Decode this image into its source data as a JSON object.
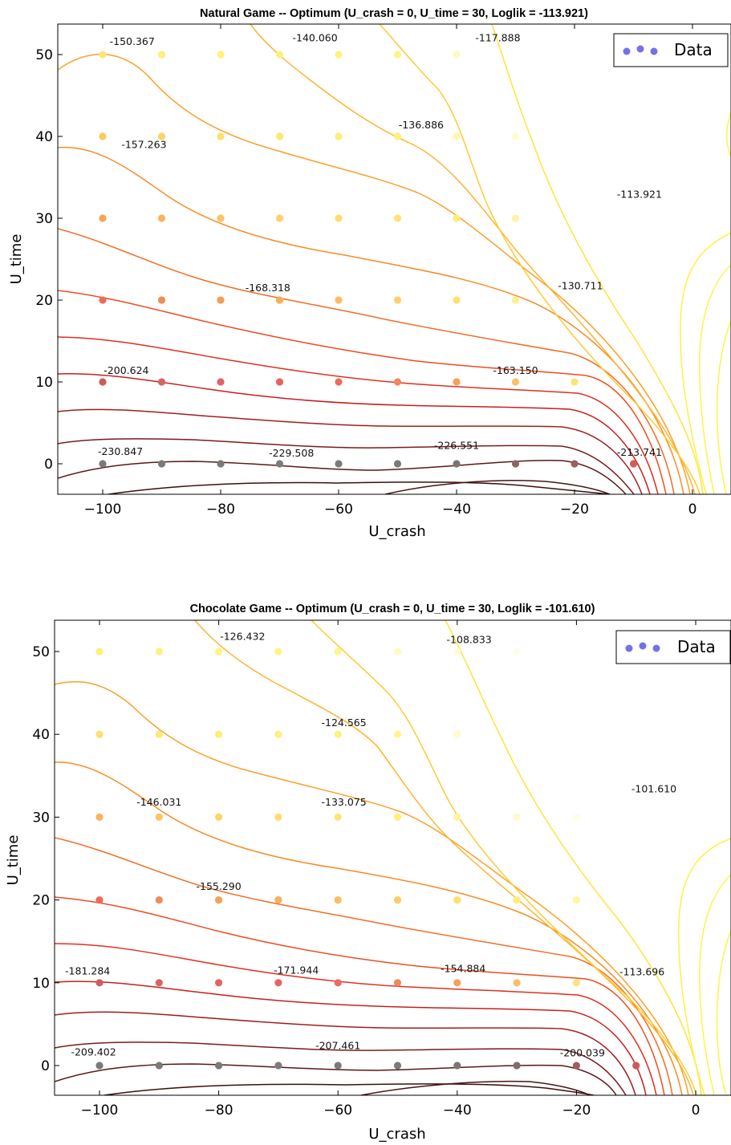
{
  "chart_data": [
    {
      "type": "contour",
      "title": "Natural Game -- Optimum (U_crash = 0, U_time = 30, Loglik = -113.921)",
      "xlabel": "U_crash",
      "ylabel": "U_time",
      "xlim": [
        -108,
        6
      ],
      "ylim": [
        -4,
        54
      ],
      "xticks": [
        "−100",
        "−80",
        "−60",
        "−40",
        "−20",
        "0"
      ],
      "yticks": [
        "0",
        "10",
        "20",
        "30",
        "40",
        "50"
      ],
      "legend": {
        "label": "Data",
        "position": "top-right",
        "color": "#7272e8"
      },
      "contour_labels": [
        {
          "x": -95,
          "y": 51.2,
          "text": "-150.367"
        },
        {
          "x": -64,
          "y": 51.6,
          "text": "-140.060"
        },
        {
          "x": -33,
          "y": 51.6,
          "text": "-117.888"
        },
        {
          "x": -93,
          "y": 38.6,
          "text": "-157.263"
        },
        {
          "x": -46,
          "y": 41.0,
          "text": "-136.886"
        },
        {
          "x": -9,
          "y": 32.5,
          "text": "-113.921"
        },
        {
          "x": -72,
          "y": 21.1,
          "text": "-168.318"
        },
        {
          "x": -19,
          "y": 21.3,
          "text": "-130.711"
        },
        {
          "x": -96,
          "y": 11.0,
          "text": "-200.624"
        },
        {
          "x": -30,
          "y": 11.0,
          "text": "-163.150"
        },
        {
          "x": -97,
          "y": 1.1,
          "text": "-230.847"
        },
        {
          "x": -68,
          "y": 0.9,
          "text": "-229.508"
        },
        {
          "x": -40,
          "y": 1.8,
          "text": "-226.551"
        },
        {
          "x": -9,
          "y": 1.0,
          "text": "-213.741"
        }
      ],
      "points_rows": [
        {
          "y": 50,
          "x": [
            -100,
            -90,
            -80,
            -70,
            -60,
            -50,
            -40
          ],
          "colors": [
            "#fde574",
            "#feef78",
            "#fef27a",
            "#fef17a",
            "#fef27a",
            "#fef683",
            "#fffac0"
          ]
        },
        {
          "y": 40,
          "x": [
            -100,
            -90,
            -80,
            -70,
            -60,
            -50,
            -40,
            -30
          ],
          "colors": [
            "#fdc95e",
            "#fdd366",
            "#fde06e",
            "#fee872",
            "#feed76",
            "#fef07a",
            "#fff7b0",
            "#fffbd4"
          ]
        },
        {
          "y": 30,
          "x": [
            -100,
            -90,
            -80,
            -70,
            -60,
            -50,
            -40,
            -30
          ],
          "colors": [
            "#f9a355",
            "#fbb55a",
            "#fcc361",
            "#fdd368",
            "#fedc6c",
            "#fee572",
            "#feed78",
            "#fff3a8"
          ]
        },
        {
          "y": 20,
          "x": [
            -100,
            -90,
            -80,
            -70,
            -60,
            -50,
            -40,
            -30
          ],
          "colors": [
            "#ef6a59",
            "#f38b58",
            "#f59c57",
            "#f8ac58",
            "#fbbd5d",
            "#fdd168",
            "#fee171",
            "#feef8c"
          ]
        },
        {
          "y": 10,
          "x": [
            -100,
            -90,
            -80,
            -70,
            -60,
            -50,
            -40,
            -30,
            -20
          ],
          "colors": [
            "#cc5c5c",
            "#d86363",
            "#e06464",
            "#ea6161",
            "#ef6a60",
            "#f2865c",
            "#f6a05a",
            "#fac065",
            "#fde477"
          ]
        },
        {
          "y": 0,
          "x": [
            -100,
            -90,
            -80,
            -70,
            -60,
            -50,
            -40,
            -30,
            -20,
            -10
          ],
          "colors": [
            "#7a7a7a",
            "#7a7a7a",
            "#7a7a7a",
            "#7c7c7c",
            "#7a7a7a",
            "#7a7a7a",
            "#7a7474",
            "#8a6464",
            "#a05e5e",
            "#d05c5c"
          ]
        }
      ]
    },
    {
      "type": "contour",
      "title": "Chocolate Game -- Optimum (U_crash = 0, U_time = 30, Loglik = -101.610)",
      "xlabel": "U_crash",
      "ylabel": "U_time",
      "xlim": [
        -108,
        6
      ],
      "ylim": [
        -4,
        54
      ],
      "xticks": [
        "−100",
        "−80",
        "−60",
        "−40",
        "−20",
        "0"
      ],
      "yticks": [
        "0",
        "10",
        "20",
        "30",
        "40",
        "50"
      ],
      "legend": {
        "label": "Data",
        "position": "top-right",
        "color": "#7272e8"
      },
      "contour_labels": [
        {
          "x": -76,
          "y": 51.4,
          "text": "-126.432"
        },
        {
          "x": -38,
          "y": 51.0,
          "text": "-108.833"
        },
        {
          "x": -59,
          "y": 41.0,
          "text": "-124.565"
        },
        {
          "x": -90,
          "y": 31.4,
          "text": "-146.031"
        },
        {
          "x": -59,
          "y": 31.4,
          "text": "-133.075"
        },
        {
          "x": -7,
          "y": 33.0,
          "text": "-101.610"
        },
        {
          "x": -80,
          "y": 21.2,
          "text": "-155.290"
        },
        {
          "x": -102,
          "y": 11.0,
          "text": "-181.284"
        },
        {
          "x": -67,
          "y": 11.1,
          "text": "-171.944"
        },
        {
          "x": -39,
          "y": 11.3,
          "text": "-154.884"
        },
        {
          "x": -9,
          "y": 10.9,
          "text": "-113.696"
        },
        {
          "x": -101,
          "y": 1.2,
          "text": "-209.402"
        },
        {
          "x": -60,
          "y": 2.0,
          "text": "-207.461"
        },
        {
          "x": -19,
          "y": 1.1,
          "text": "-200.039"
        }
      ],
      "points_rows": [
        {
          "y": 50,
          "x": [
            -100,
            -90,
            -80,
            -70,
            -60,
            -50,
            -40,
            -30
          ],
          "colors": [
            "#fef07a",
            "#fef27c",
            "#fef47e",
            "#fef582",
            "#fef68c",
            "#fffac4",
            "#fffbd8",
            "#fffde8"
          ]
        },
        {
          "y": 40,
          "x": [
            -100,
            -90,
            -80,
            -70,
            -60,
            -50,
            -40
          ],
          "colors": [
            "#fde06e",
            "#fde876",
            "#feee78",
            "#fef07a",
            "#fef27c",
            "#fef590",
            "#fffbcc"
          ]
        },
        {
          "y": 30,
          "x": [
            -100,
            -90,
            -80,
            -70,
            -60,
            -50,
            -40,
            -30,
            -20
          ],
          "colors": [
            "#fbb45a",
            "#fcc462",
            "#fdd469",
            "#fedd6e",
            "#fee573",
            "#feee7a",
            "#fff3a0",
            "#fffacc",
            "#fffde6"
          ]
        },
        {
          "y": 20,
          "x": [
            -100,
            -90,
            -80,
            -70,
            -60,
            -50,
            -40,
            -30,
            -20
          ],
          "colors": [
            "#ef6a59",
            "#f38a58",
            "#f6a059",
            "#f9b05a",
            "#fbbd5e",
            "#fdce66",
            "#fee070",
            "#feec78",
            "#fff4a8"
          ]
        },
        {
          "y": 10,
          "x": [
            -100,
            -90,
            -80,
            -70,
            -60,
            -50,
            -40,
            -30,
            -20
          ],
          "colors": [
            "#d05c5c",
            "#da6262",
            "#e26464",
            "#ea6262",
            "#ee6a60",
            "#f2865c",
            "#f6a05a",
            "#fabf64",
            "#fee27a"
          ]
        },
        {
          "y": 0,
          "x": [
            -100,
            -90,
            -80,
            -70,
            -60,
            -50,
            -40,
            -30,
            -20,
            -10
          ],
          "colors": [
            "#7a7a7a",
            "#7a7a7a",
            "#7a7a7a",
            "#7c7c7c",
            "#7a7a7a",
            "#7a7a7a",
            "#7a7474",
            "#846868",
            "#9c6060",
            "#cc5a5a"
          ]
        }
      ]
    }
  ]
}
